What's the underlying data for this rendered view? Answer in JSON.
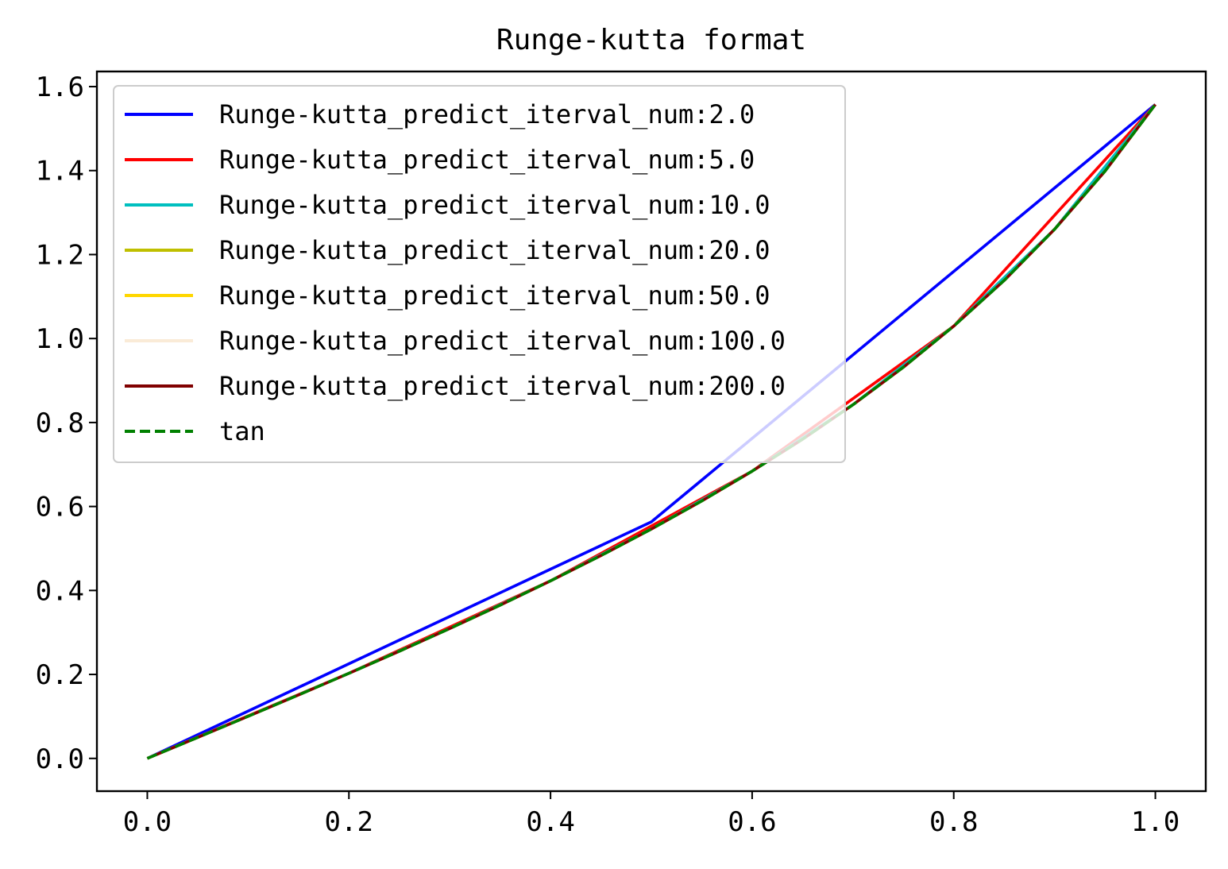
{
  "chart_data": {
    "type": "line",
    "title": "Runge-kutta format",
    "xlabel": "",
    "ylabel": "",
    "xlim": [
      -0.05,
      1.05
    ],
    "ylim": [
      -0.078,
      1.636
    ],
    "xticks": [
      0.0,
      0.2,
      0.4,
      0.6,
      0.8,
      1.0
    ],
    "xtick_labels": [
      "0.0",
      "0.2",
      "0.4",
      "0.6",
      "0.8",
      "1.0"
    ],
    "yticks": [
      0.0,
      0.2,
      0.4,
      0.6,
      0.8,
      1.0,
      1.2,
      1.4,
      1.6
    ],
    "ytick_labels": [
      "0.0",
      "0.2",
      "0.4",
      "0.6",
      "0.8",
      "1.0",
      "1.2",
      "1.4",
      "1.6"
    ],
    "grid": false,
    "legend_position": "top-left",
    "series": [
      {
        "name": "Runge-kutta_predict_iterval_num:2.0",
        "color": "#0000ff",
        "dash": "solid",
        "x": [
          0.0,
          0.5,
          1.0
        ],
        "y": [
          0.0,
          0.5634,
          1.5574
        ]
      },
      {
        "name": "Runge-kutta_predict_iterval_num:5.0",
        "color": "#ff0000",
        "dash": "solid",
        "x": [
          0.0,
          0.2,
          0.4,
          0.6,
          0.8,
          1.0
        ],
        "y": [
          0.0,
          0.2027,
          0.4228,
          0.6841,
          1.0296,
          1.5574
        ]
      },
      {
        "name": "Runge-kutta_predict_iterval_num:10.0",
        "color": "#00bfbf",
        "dash": "solid",
        "x": [
          0.0,
          0.1,
          0.2,
          0.3,
          0.4,
          0.5,
          0.6,
          0.7,
          0.8,
          0.9,
          1.0
        ],
        "y": [
          0.0,
          0.1003,
          0.2027,
          0.3093,
          0.4228,
          0.5463,
          0.6841,
          0.8423,
          1.0296,
          1.2602,
          1.5574
        ]
      },
      {
        "name": "Runge-kutta_predict_iterval_num:20.0",
        "color": "#bfbf00",
        "dash": "solid",
        "x": [
          0.0,
          0.05,
          0.1,
          0.15,
          0.2,
          0.25,
          0.3,
          0.35,
          0.4,
          0.45,
          0.5,
          0.55,
          0.6,
          0.65,
          0.7,
          0.75,
          0.8,
          0.85,
          0.9,
          0.95,
          1.0
        ],
        "y": [
          0.0,
          0.05,
          0.1003,
          0.1511,
          0.2027,
          0.2553,
          0.3093,
          0.365,
          0.4228,
          0.4831,
          0.5463,
          0.6131,
          0.6841,
          0.7602,
          0.8423,
          0.9316,
          1.0296,
          1.1383,
          1.2602,
          1.3984,
          1.5574
        ]
      },
      {
        "name": "Runge-kutta_predict_iterval_num:50.0",
        "color": "#ffd700",
        "dash": "solid",
        "x": [
          0.0,
          0.05,
          0.1,
          0.15,
          0.2,
          0.25,
          0.3,
          0.35,
          0.4,
          0.45,
          0.5,
          0.55,
          0.6,
          0.65,
          0.7,
          0.75,
          0.8,
          0.85,
          0.9,
          0.95,
          1.0
        ],
        "y": [
          0.0,
          0.05,
          0.1003,
          0.1511,
          0.2027,
          0.2553,
          0.3093,
          0.365,
          0.4228,
          0.4831,
          0.5463,
          0.6131,
          0.6841,
          0.7602,
          0.8423,
          0.9316,
          1.0296,
          1.1383,
          1.2602,
          1.3984,
          1.5574
        ]
      },
      {
        "name": "Runge-kutta_predict_iterval_num:100.0",
        "color": "#faebd7",
        "dash": "solid",
        "x": [
          0.0,
          0.05,
          0.1,
          0.15,
          0.2,
          0.25,
          0.3,
          0.35,
          0.4,
          0.45,
          0.5,
          0.55,
          0.6,
          0.65,
          0.7,
          0.75,
          0.8,
          0.85,
          0.9,
          0.95,
          1.0
        ],
        "y": [
          0.0,
          0.05,
          0.1003,
          0.1511,
          0.2027,
          0.2553,
          0.3093,
          0.365,
          0.4228,
          0.4831,
          0.5463,
          0.6131,
          0.6841,
          0.7602,
          0.8423,
          0.9316,
          1.0296,
          1.1383,
          1.2602,
          1.3984,
          1.5574
        ]
      },
      {
        "name": "Runge-kutta_predict_iterval_num:200.0",
        "color": "#800000",
        "dash": "solid",
        "x": [
          0.0,
          0.05,
          0.1,
          0.15,
          0.2,
          0.25,
          0.3,
          0.35,
          0.4,
          0.45,
          0.5,
          0.55,
          0.6,
          0.65,
          0.7,
          0.75,
          0.8,
          0.85,
          0.9,
          0.95,
          1.0
        ],
        "y": [
          0.0,
          0.05,
          0.1003,
          0.1511,
          0.2027,
          0.2553,
          0.3093,
          0.365,
          0.4228,
          0.4831,
          0.5463,
          0.6131,
          0.6841,
          0.7602,
          0.8423,
          0.9316,
          1.0296,
          1.1383,
          1.2602,
          1.3984,
          1.5574
        ]
      },
      {
        "name": "tan",
        "color": "#008000",
        "dash": "dashed",
        "x": [
          0.0,
          0.05,
          0.1,
          0.15,
          0.2,
          0.25,
          0.3,
          0.35,
          0.4,
          0.45,
          0.5,
          0.55,
          0.6,
          0.65,
          0.7,
          0.75,
          0.8,
          0.85,
          0.9,
          0.95,
          1.0
        ],
        "y": [
          0.0,
          0.05,
          0.1003,
          0.1511,
          0.2027,
          0.2553,
          0.3093,
          0.365,
          0.4228,
          0.4831,
          0.5463,
          0.6131,
          0.6841,
          0.7602,
          0.8423,
          0.9316,
          1.0296,
          1.1383,
          1.2602,
          1.3984,
          1.5574
        ]
      }
    ]
  }
}
